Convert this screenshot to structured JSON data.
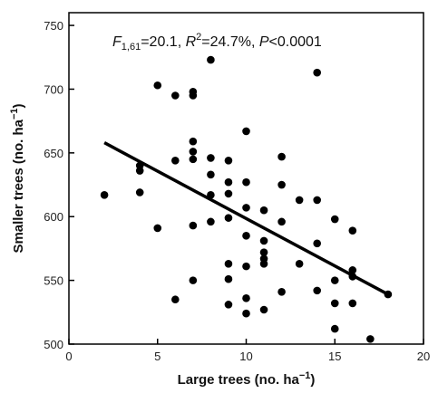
{
  "chart_data": {
    "type": "scatter",
    "title": "",
    "xlabel": {
      "text": "Large trees (no. ha",
      "sup": "−1",
      "close": ")"
    },
    "ylabel": {
      "text": "Smaller trees (no. ha",
      "sup": "−1",
      "close": ")"
    },
    "xlim": [
      0,
      20
    ],
    "ylim": [
      500,
      760
    ],
    "xticks": [
      "0",
      "5",
      "10",
      "15",
      "20"
    ],
    "xtick_values": [
      0,
      5,
      10,
      15,
      20
    ],
    "yticks": [
      "500",
      "550",
      "600",
      "650",
      "700",
      "750"
    ],
    "ytick_values": [
      500,
      550,
      600,
      650,
      700,
      750
    ],
    "grid": false,
    "annotation": {
      "f_letter": "F",
      "f_sub": "1,61",
      "f_value": "=20.1, ",
      "r_letter": "R",
      "r_sup": "2",
      "r_value": "=24.7%, ",
      "p_letter": "P",
      "p_value": "<0.0001"
    },
    "regression_line": {
      "x": [
        2,
        18
      ],
      "y": [
        658,
        539
      ]
    },
    "points": [
      [
        2,
        617
      ],
      [
        4,
        640
      ],
      [
        4,
        636
      ],
      [
        4,
        619
      ],
      [
        5,
        703
      ],
      [
        5,
        591
      ],
      [
        6,
        695
      ],
      [
        6,
        644
      ],
      [
        6,
        535
      ],
      [
        7,
        698
      ],
      [
        7,
        695
      ],
      [
        7,
        659
      ],
      [
        7,
        651
      ],
      [
        7,
        645
      ],
      [
        7,
        593
      ],
      [
        7,
        550
      ],
      [
        8,
        723
      ],
      [
        8,
        646
      ],
      [
        8,
        633
      ],
      [
        8,
        617
      ],
      [
        8,
        596
      ],
      [
        9,
        644
      ],
      [
        9,
        627
      ],
      [
        9,
        618
      ],
      [
        9,
        599
      ],
      [
        9,
        563
      ],
      [
        9,
        551
      ],
      [
        9,
        531
      ],
      [
        10,
        667
      ],
      [
        10,
        627
      ],
      [
        10,
        607
      ],
      [
        10,
        585
      ],
      [
        10,
        561
      ],
      [
        10,
        536
      ],
      [
        10,
        524
      ],
      [
        11,
        605
      ],
      [
        11,
        581
      ],
      [
        11,
        572
      ],
      [
        11,
        567
      ],
      [
        11,
        563
      ],
      [
        11,
        527
      ],
      [
        12,
        647
      ],
      [
        12,
        625
      ],
      [
        12,
        596
      ],
      [
        12,
        541
      ],
      [
        13,
        613
      ],
      [
        13,
        563
      ],
      [
        14,
        713
      ],
      [
        14,
        613
      ],
      [
        14,
        579
      ],
      [
        14,
        542
      ],
      [
        15,
        598
      ],
      [
        15,
        550
      ],
      [
        15,
        532
      ],
      [
        15,
        512
      ],
      [
        16,
        589
      ],
      [
        16,
        558
      ],
      [
        16,
        553
      ],
      [
        16,
        532
      ],
      [
        17,
        504
      ],
      [
        18,
        539
      ]
    ]
  }
}
